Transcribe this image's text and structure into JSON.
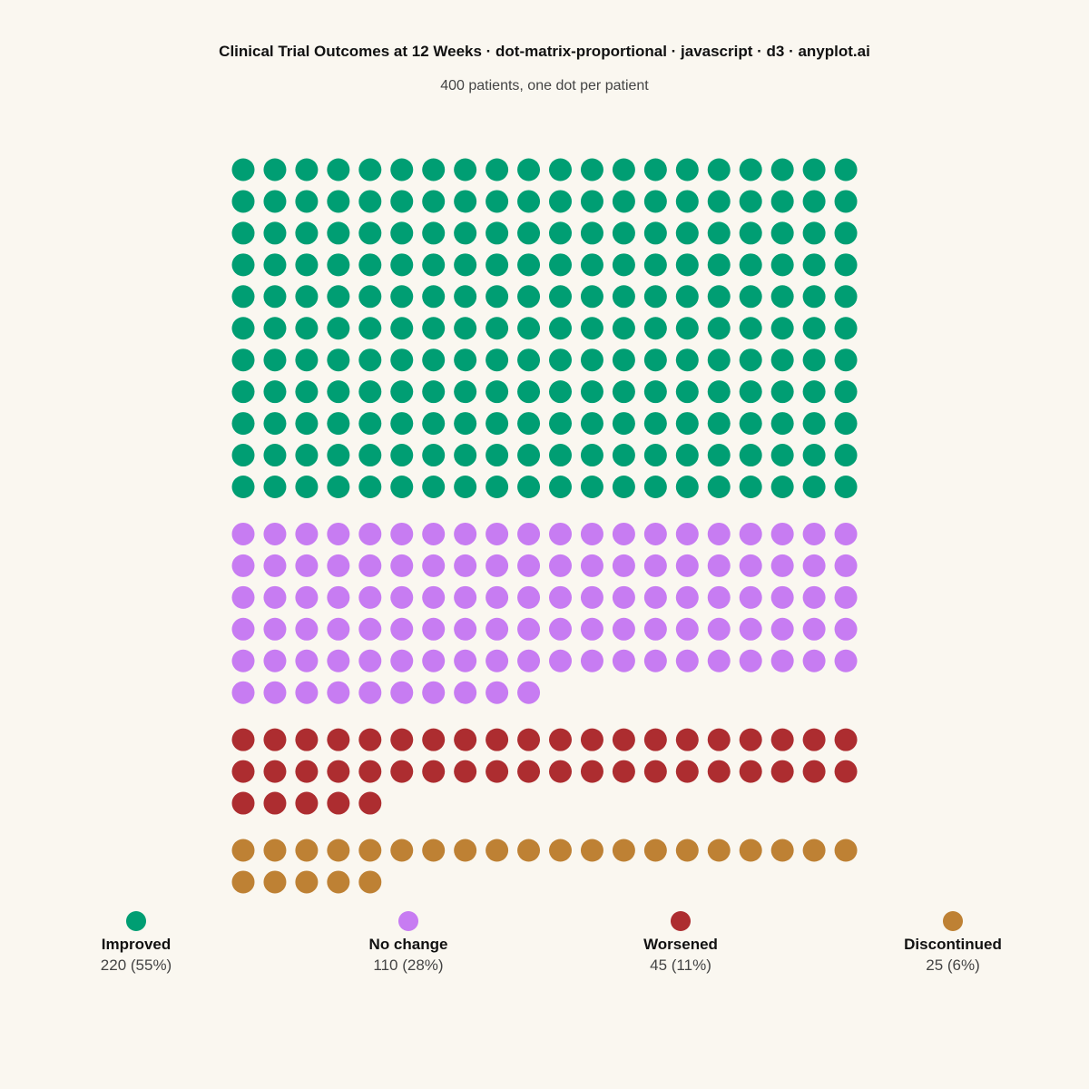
{
  "header": {
    "title": "Clinical Trial Outcomes at 12 Weeks · dot-matrix-proportional · javascript · d3 · anyplot.ai",
    "subtitle": "400 patients, one dot per patient"
  },
  "chart_data": {
    "type": "dot-matrix",
    "title": "Clinical Trial Outcomes at 12 Weeks · dot-matrix-proportional · javascript · d3 · anyplot.ai",
    "subtitle": "400 patients, one dot per patient",
    "total": 400,
    "columns": 20,
    "legend_placement": "bottom",
    "categories": [
      {
        "name": "Improved",
        "count": 220,
        "label": "220 (55%)",
        "color": "#009E73"
      },
      {
        "name": "No change",
        "count": 110,
        "label": "110 (28%)",
        "color": "#C77CF2"
      },
      {
        "name": "Worsened",
        "count": 45,
        "label": "45 (11%)",
        "color": "#AD2D30"
      },
      {
        "name": "Discontinued",
        "count": 25,
        "label": "25 (6%)",
        "color": "#BE8134"
      }
    ]
  }
}
